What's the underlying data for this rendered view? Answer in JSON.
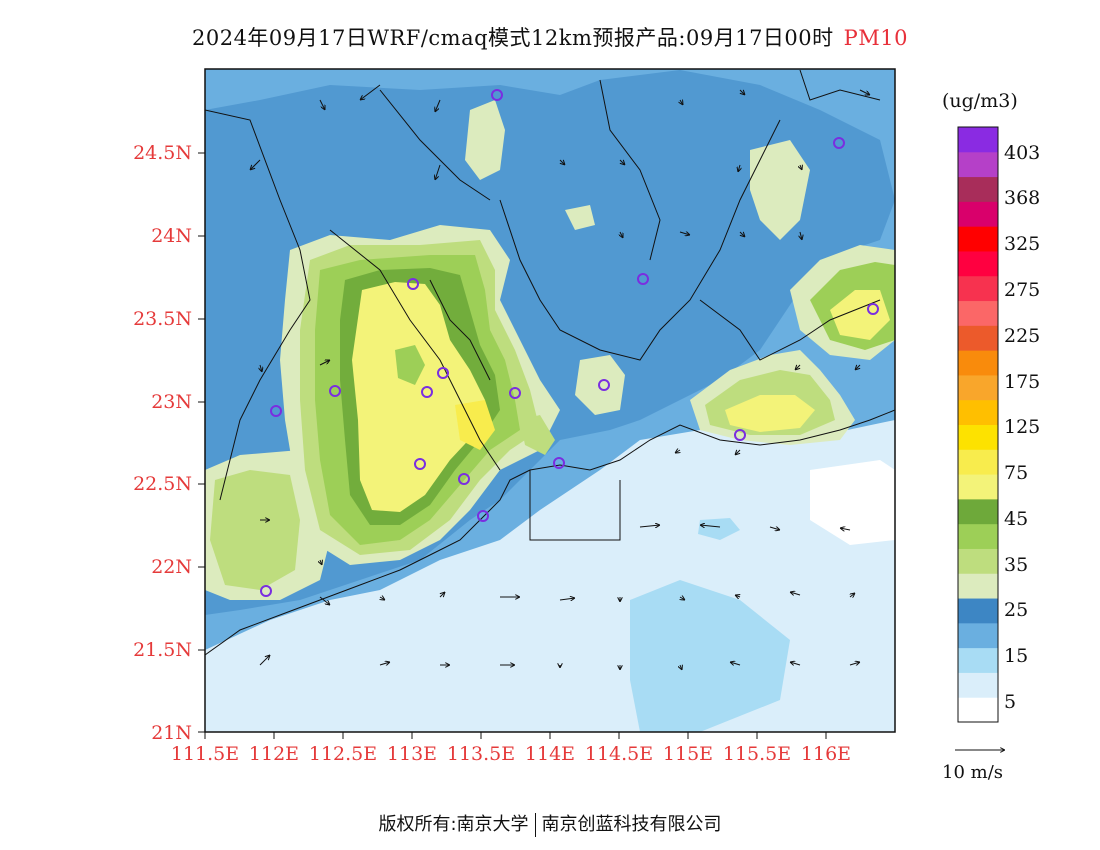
{
  "header": {
    "title": "2024年09月17日WRF/cmaq模式12km预报产品:09月17日00时",
    "pollutant": "PM10"
  },
  "axes": {
    "lat_labels": [
      "24.5N",
      "24N",
      "23.5N",
      "23N",
      "22.5N",
      "22N",
      "21.5N",
      "21N"
    ],
    "lon_labels": [
      "111.5E",
      "112E",
      "112.5E",
      "113E",
      "113.5E",
      "114E",
      "114.5E",
      "115E",
      "115.5E",
      "116E"
    ]
  },
  "colorbar": {
    "unit": "(ug/m3)",
    "labels": [
      "403",
      "368",
      "325",
      "275",
      "225",
      "175",
      "125",
      "75",
      "45",
      "35",
      "25",
      "15",
      "5"
    ],
    "colors": [
      "#ffffff",
      "#daeefa",
      "#a8dcf4",
      "#6aafe0",
      "#3d86c4",
      "#dcebbe",
      "#bedd7e",
      "#9dcf57",
      "#6ea93a",
      "#f3f379",
      "#f8ec4d",
      "#fde200",
      "#ffbf00",
      "#f9a62b",
      "#f98b0c",
      "#ec5a2b",
      "#fb6767",
      "#f7324f",
      "#ff0040",
      "#ff0000",
      "#d9006b",
      "#a82d5a",
      "#b540c8",
      "#8a2be2"
    ]
  },
  "wind_reference": {
    "label": "10  m/s"
  },
  "footer": {
    "copyright": "版权所有:",
    "org1": "南京大学",
    "org2": "南京创蓝科技有限公司"
  }
}
